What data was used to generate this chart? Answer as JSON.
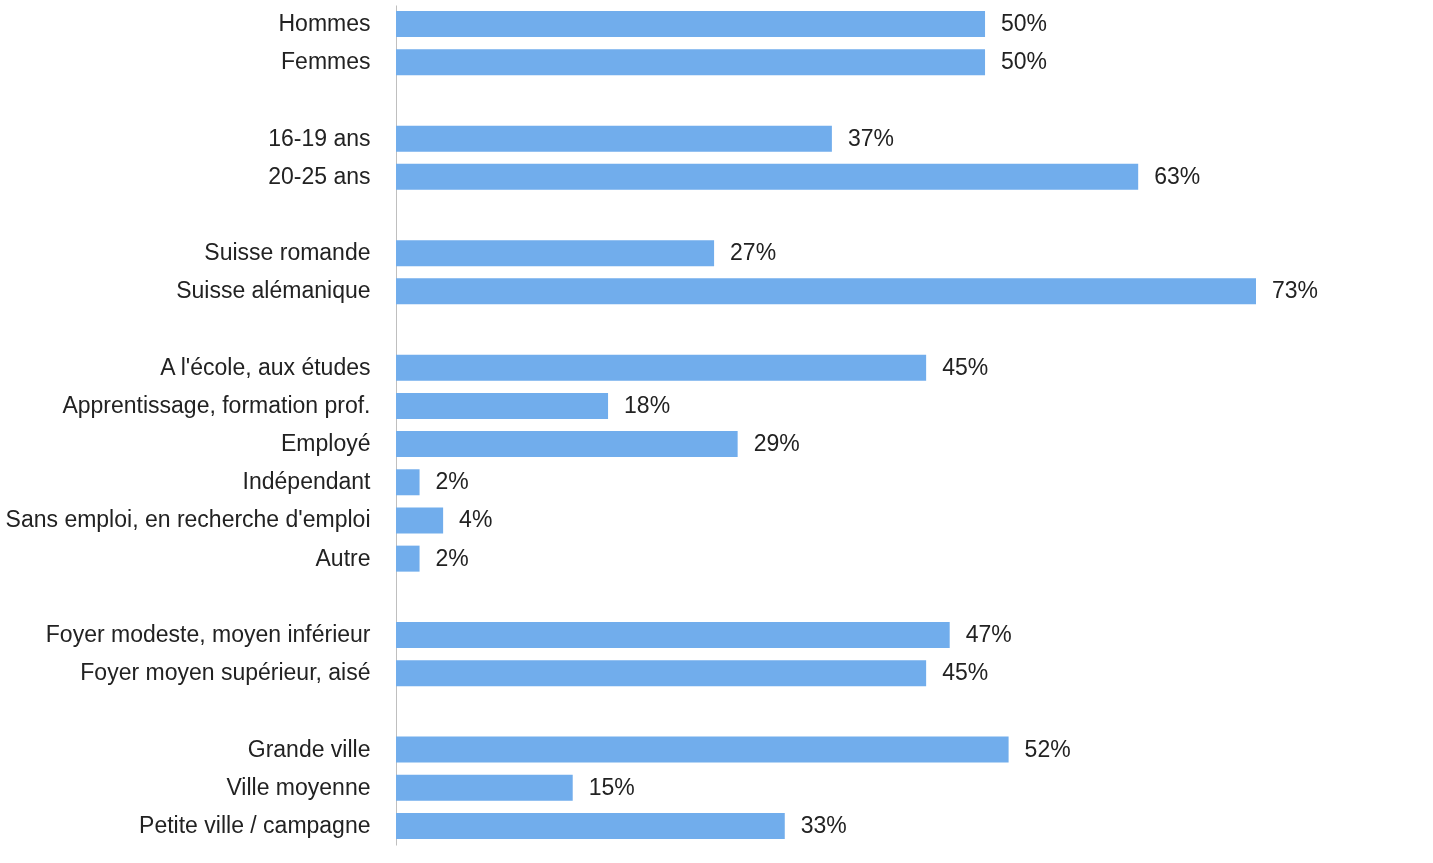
{
  "chart_data": {
    "type": "bar",
    "orientation": "horizontal",
    "categories": [
      "Hommes",
      "Femmes",
      null,
      "16-19 ans",
      "20-25 ans",
      null,
      "Suisse romande",
      "Suisse alémanique",
      null,
      "A l'école, aux études",
      "Apprentissage, formation prof.",
      "Employé",
      "Indépendant",
      "Sans emploi, en recherche d'emploi",
      "Autre",
      null,
      "Foyer modeste, moyen inférieur",
      "Foyer moyen supérieur, aisé",
      null,
      "Grande ville",
      "Ville moyenne",
      "Petite ville / campagne"
    ],
    "values": [
      50,
      50,
      null,
      37,
      63,
      null,
      27,
      73,
      null,
      45,
      18,
      29,
      2,
      4,
      2,
      null,
      47,
      45,
      null,
      52,
      15,
      33
    ],
    "value_labels": [
      "50%",
      "50%",
      null,
      "37%",
      "63%",
      null,
      "27%",
      "73%",
      null,
      "45%",
      "18%",
      "29%",
      "2%",
      "4%",
      "2%",
      null,
      "47%",
      "45%",
      null,
      "52%",
      "15%",
      "33%"
    ],
    "color": "#71adec",
    "grid": false
  }
}
